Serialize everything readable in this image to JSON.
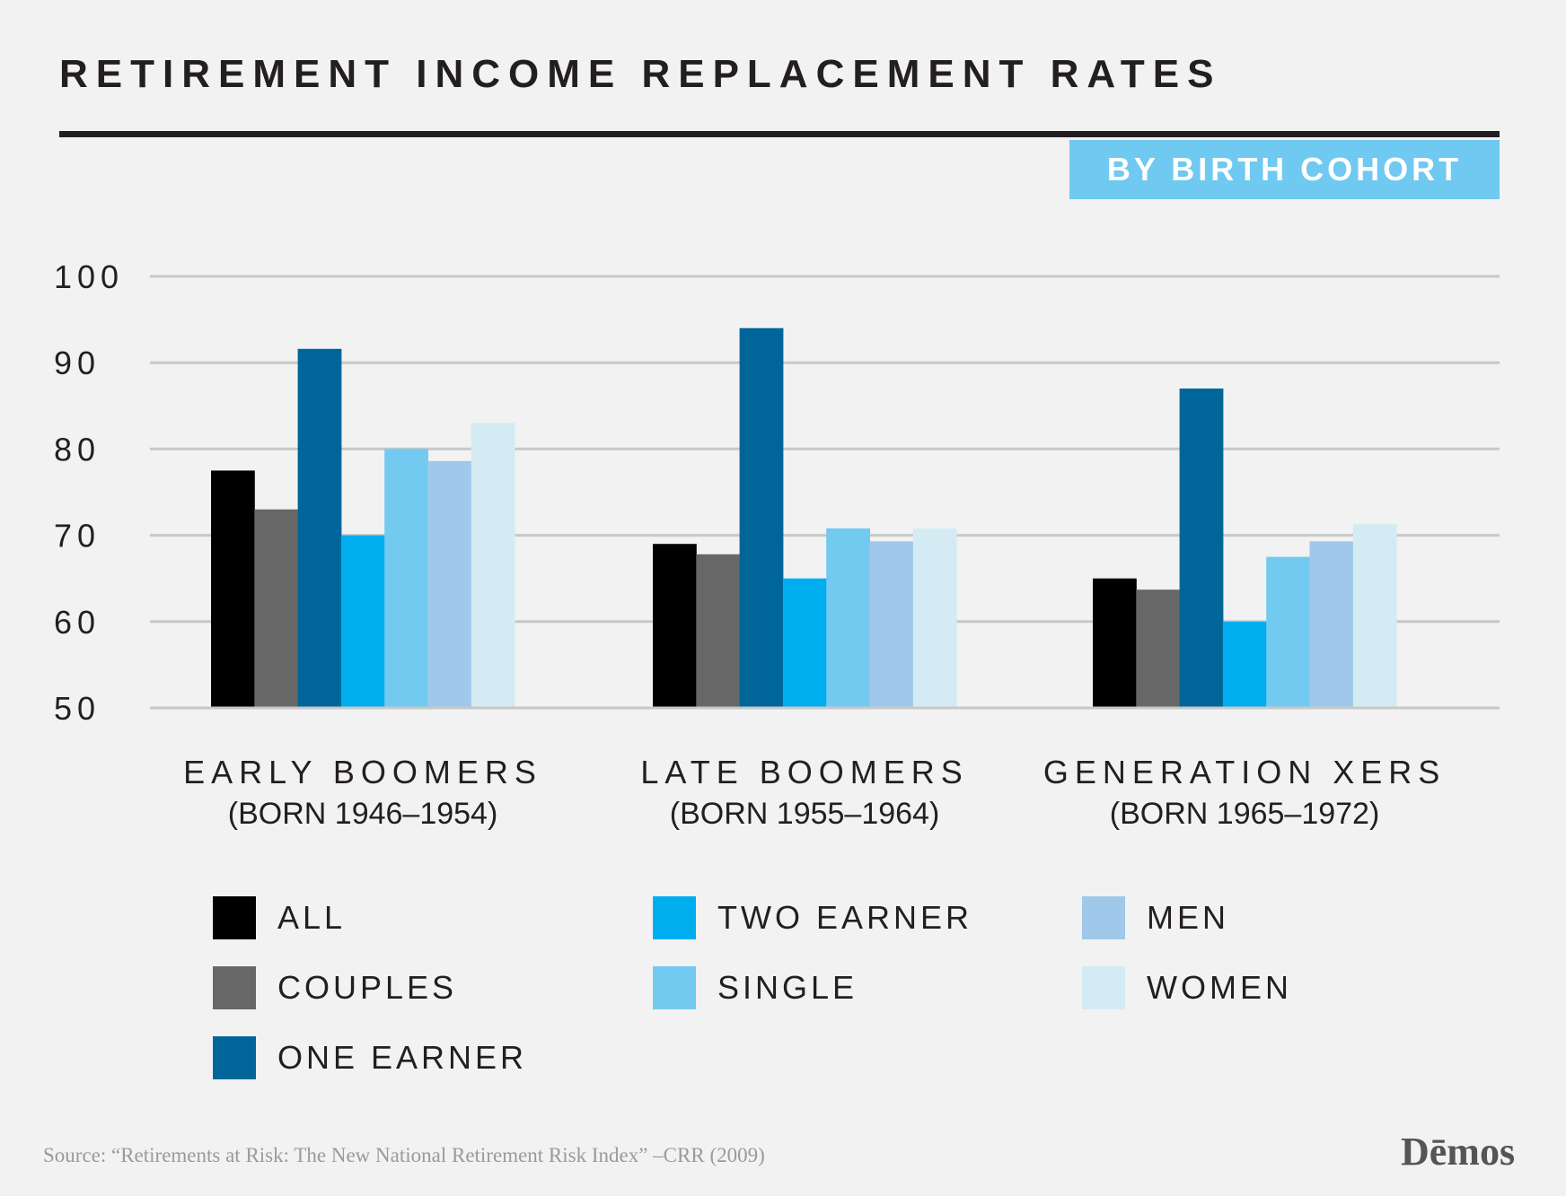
{
  "header": {
    "title": "RETIREMENT INCOME REPLACEMENT RATES",
    "badge": "BY BIRTH COHORT"
  },
  "chart_data": {
    "type": "bar",
    "categories": [
      "EARLY BOOMERS",
      "LATE BOOMERS",
      "GENERATION XERS"
    ],
    "category_sublabels": [
      "(BORN 1946–1954)",
      "(BORN 1955–1964)",
      "(BORN 1965–1972)"
    ],
    "ylim": [
      50,
      100
    ],
    "yticks": [
      50,
      60,
      70,
      80,
      90,
      100
    ],
    "grid": true,
    "series": [
      {
        "name": "ALL",
        "color": "#000000",
        "values": [
          77.5,
          69,
          65
        ]
      },
      {
        "name": "COUPLES",
        "color": "#676767",
        "values": [
          73,
          67.8,
          63.7
        ]
      },
      {
        "name": "ONE EARNER",
        "color": "#006699",
        "values": [
          91.6,
          94,
          87
        ]
      },
      {
        "name": "TWO EARNER",
        "color": "#00aeef",
        "values": [
          70,
          65,
          60
        ]
      },
      {
        "name": "SINGLE",
        "color": "#73caf0",
        "values": [
          80,
          70.8,
          67.5
        ]
      },
      {
        "name": "MEN",
        "color": "#a0c8eb",
        "values": [
          78.6,
          69.3,
          69.3
        ]
      },
      {
        "name": "WOMEN",
        "color": "#d4ebf3",
        "values": [
          83,
          70.8,
          71.3
        ]
      }
    ],
    "legend": "bottom"
  },
  "footer": {
    "source": "Source: “Retirements at Risk: The New National Retirement Risk Index” –CRR (2009)",
    "logo": "Dēmos"
  }
}
